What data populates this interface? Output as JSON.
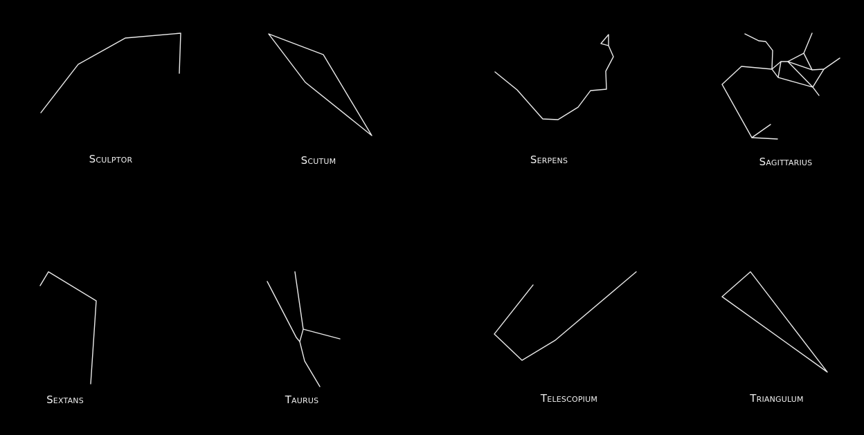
{
  "background_color": "#000000",
  "line_color": "#ececec",
  "text_color": "#f2f2f2",
  "constellations": [
    {
      "key": "sculptor",
      "name": "Sculptor"
    },
    {
      "key": "scutum",
      "name": "Scutum"
    },
    {
      "key": "serpens",
      "name": "Serpens"
    },
    {
      "key": "sagittarius",
      "name": "Sagittarius"
    },
    {
      "key": "sextans",
      "name": "Sextans"
    },
    {
      "key": "taurus",
      "name": "Taurus"
    },
    {
      "key": "telescopium",
      "name": "Telescopium"
    },
    {
      "key": "triangulum",
      "name": "Triangulum"
    }
  ]
}
